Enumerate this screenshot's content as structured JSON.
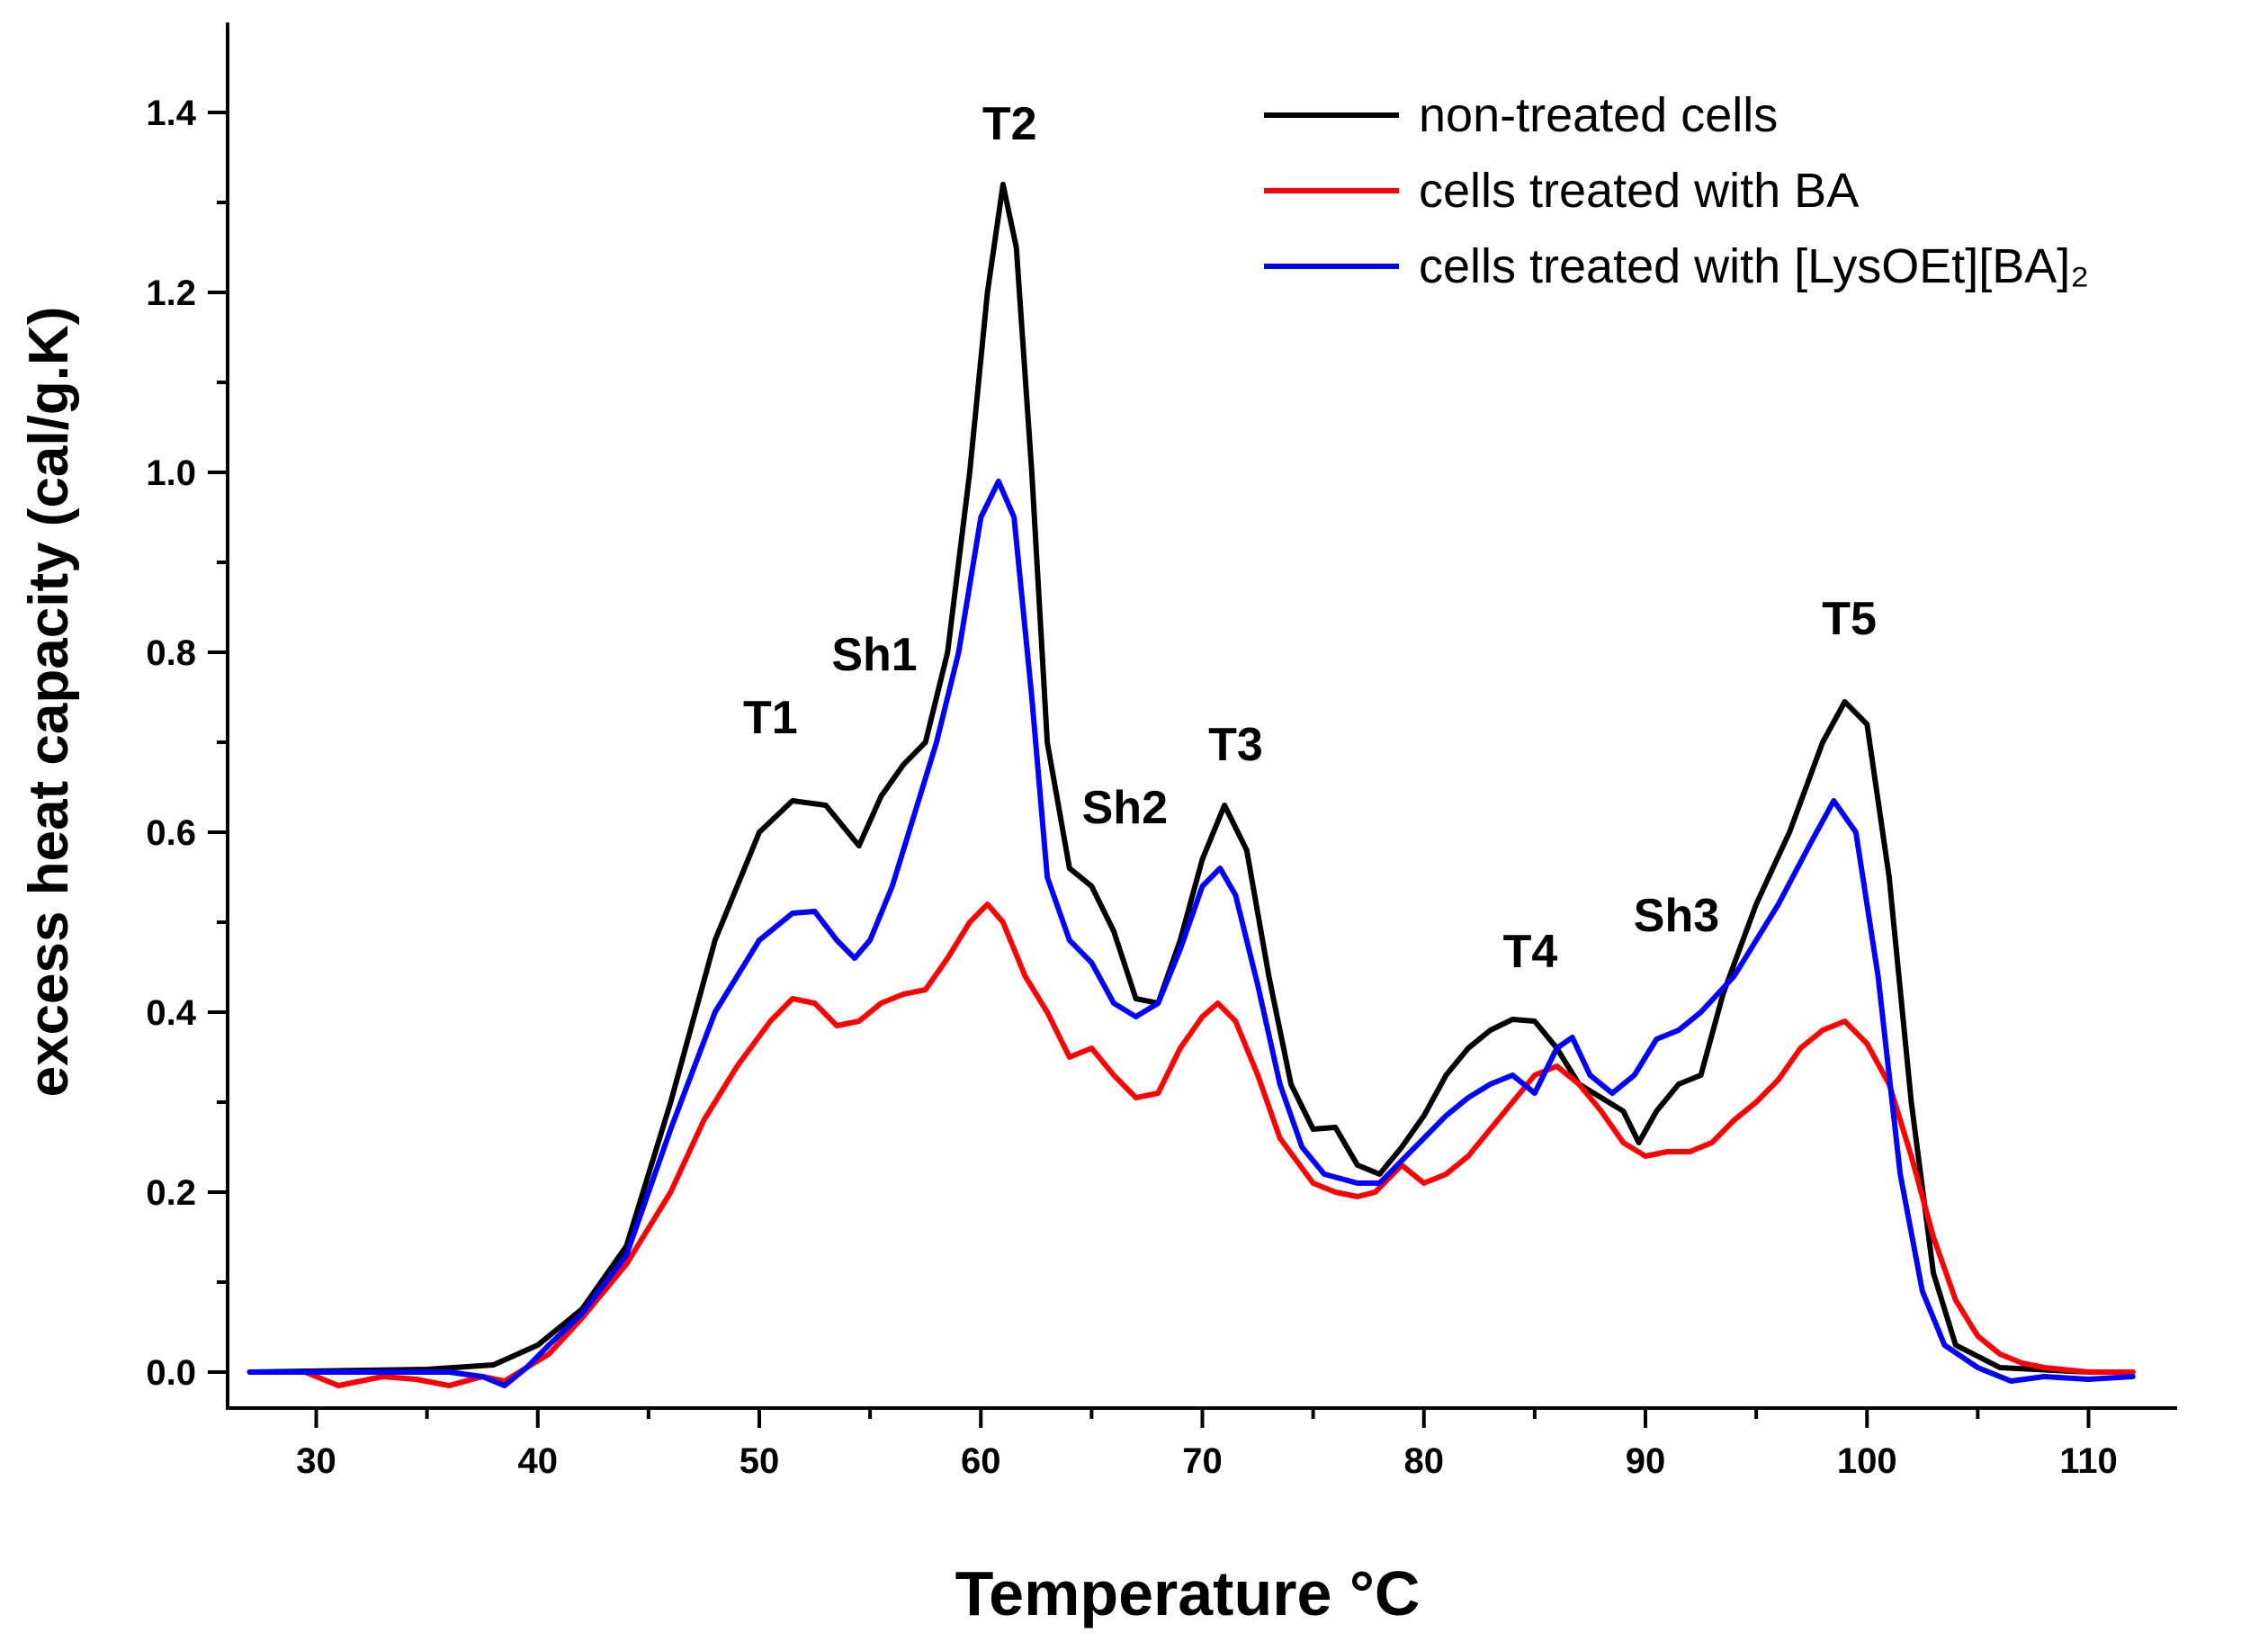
{
  "chart_data": {
    "type": "line",
    "title": "",
    "xlabel": "Temperature °C",
    "ylabel": "excess heat capacity (cal/g.K)",
    "xlim": [
      26,
      114
    ],
    "ylim": [
      -0.04,
      1.5
    ],
    "x_ticks": [
      30,
      40,
      50,
      60,
      70,
      80,
      90,
      100,
      110
    ],
    "x_tick_labels": [
      "30",
      "40",
      "50",
      "60",
      "70",
      "80",
      "90",
      "100",
      "110"
    ],
    "y_ticks": [
      0.0,
      0.2,
      0.4,
      0.6,
      0.8,
      1.0,
      1.2,
      1.4
    ],
    "y_tick_labels": [
      "0.0",
      "0.2",
      "0.4",
      "0.6",
      "0.8",
      "1.0",
      "1.2",
      "1.4"
    ],
    "grid": false,
    "legend_position": "top-right",
    "series": [
      {
        "name": "non-treated cells",
        "color": "#000000",
        "points": [
          [
            27,
            0
          ],
          [
            35,
            0.003
          ],
          [
            38,
            0.008
          ],
          [
            40,
            0.03
          ],
          [
            42,
            0.07
          ],
          [
            44,
            0.14
          ],
          [
            46,
            0.3
          ],
          [
            48,
            0.48
          ],
          [
            50,
            0.6
          ],
          [
            51.5,
            0.635
          ],
          [
            53,
            0.63
          ],
          [
            54.5,
            0.585
          ],
          [
            55.5,
            0.64
          ],
          [
            56.5,
            0.675
          ],
          [
            57.5,
            0.7
          ],
          [
            58.5,
            0.8
          ],
          [
            59.5,
            1.0
          ],
          [
            60.3,
            1.2
          ],
          [
            61,
            1.32
          ],
          [
            61.6,
            1.25
          ],
          [
            62.3,
            1.0
          ],
          [
            63,
            0.7
          ],
          [
            64,
            0.56
          ],
          [
            65,
            0.54
          ],
          [
            66,
            0.49
          ],
          [
            67,
            0.415
          ],
          [
            68,
            0.41
          ],
          [
            69,
            0.48
          ],
          [
            70,
            0.57
          ],
          [
            71,
            0.63
          ],
          [
            72,
            0.58
          ],
          [
            73,
            0.44
          ],
          [
            74,
            0.32
          ],
          [
            75,
            0.27
          ],
          [
            76,
            0.272
          ],
          [
            77,
            0.23
          ],
          [
            78,
            0.22
          ],
          [
            79,
            0.25
          ],
          [
            80,
            0.285
          ],
          [
            81,
            0.33
          ],
          [
            82,
            0.36
          ],
          [
            83,
            0.38
          ],
          [
            84,
            0.392
          ],
          [
            85,
            0.39
          ],
          [
            86,
            0.36
          ],
          [
            87,
            0.32
          ],
          [
            88,
            0.305
          ],
          [
            89,
            0.29
          ],
          [
            89.7,
            0.255
          ],
          [
            90.5,
            0.29
          ],
          [
            91.5,
            0.32
          ],
          [
            92.5,
            0.33
          ],
          [
            93.5,
            0.42
          ],
          [
            95,
            0.52
          ],
          [
            96.5,
            0.6
          ],
          [
            98,
            0.7
          ],
          [
            99,
            0.745
          ],
          [
            100,
            0.72
          ],
          [
            101,
            0.55
          ],
          [
            102,
            0.3
          ],
          [
            103,
            0.11
          ],
          [
            104,
            0.03
          ],
          [
            106,
            0.005
          ],
          [
            110,
            0
          ],
          [
            112,
            0
          ]
        ]
      },
      {
        "name": "cells treated with BA",
        "color": "#ff0000",
        "points": [
          [
            27,
            0
          ],
          [
            29.5,
            0
          ],
          [
            31,
            -0.015
          ],
          [
            33,
            -0.005
          ],
          [
            34.5,
            -0.008
          ],
          [
            36,
            -0.015
          ],
          [
            37.5,
            -0.005
          ],
          [
            38.5,
            -0.01
          ],
          [
            39.5,
            0.005
          ],
          [
            40.5,
            0.02
          ],
          [
            42,
            0.06
          ],
          [
            44,
            0.12
          ],
          [
            46,
            0.2
          ],
          [
            47.5,
            0.28
          ],
          [
            49,
            0.34
          ],
          [
            50.5,
            0.39
          ],
          [
            51.5,
            0.415
          ],
          [
            52.5,
            0.41
          ],
          [
            53.5,
            0.385
          ],
          [
            54.5,
            0.39
          ],
          [
            55.5,
            0.41
          ],
          [
            56.5,
            0.42
          ],
          [
            57.5,
            0.425
          ],
          [
            58.5,
            0.46
          ],
          [
            59.5,
            0.5
          ],
          [
            60.3,
            0.52
          ],
          [
            61,
            0.5
          ],
          [
            62,
            0.44
          ],
          [
            63,
            0.4
          ],
          [
            64,
            0.35
          ],
          [
            65,
            0.36
          ],
          [
            66,
            0.33
          ],
          [
            67,
            0.305
          ],
          [
            68,
            0.31
          ],
          [
            69,
            0.36
          ],
          [
            70,
            0.395
          ],
          [
            70.7,
            0.41
          ],
          [
            71.5,
            0.39
          ],
          [
            72.5,
            0.33
          ],
          [
            73.5,
            0.26
          ],
          [
            75,
            0.21
          ],
          [
            76,
            0.2
          ],
          [
            77,
            0.195
          ],
          [
            77.8,
            0.2
          ],
          [
            79,
            0.23
          ],
          [
            80,
            0.21
          ],
          [
            81,
            0.22
          ],
          [
            82,
            0.24
          ],
          [
            83,
            0.27
          ],
          [
            84,
            0.3
          ],
          [
            85,
            0.33
          ],
          [
            86,
            0.34
          ],
          [
            87,
            0.32
          ],
          [
            88,
            0.29
          ],
          [
            89,
            0.255
          ],
          [
            90,
            0.24
          ],
          [
            91,
            0.245
          ],
          [
            92,
            0.245
          ],
          [
            93,
            0.255
          ],
          [
            94,
            0.28
          ],
          [
            95,
            0.3
          ],
          [
            96,
            0.325
          ],
          [
            97,
            0.36
          ],
          [
            98,
            0.38
          ],
          [
            99,
            0.39
          ],
          [
            100,
            0.365
          ],
          [
            101,
            0.32
          ],
          [
            102,
            0.24
          ],
          [
            103,
            0.15
          ],
          [
            104,
            0.08
          ],
          [
            105,
            0.04
          ],
          [
            106,
            0.02
          ],
          [
            107,
            0.01
          ],
          [
            108,
            0.005
          ],
          [
            110,
            0
          ],
          [
            112,
            0
          ]
        ]
      },
      {
        "name": "cells treated with [LysOEt][BA]₂",
        "color": "#0000ff",
        "points": [
          [
            27,
            0
          ],
          [
            36,
            0
          ],
          [
            37.5,
            -0.005
          ],
          [
            38.5,
            -0.015
          ],
          [
            39.5,
            0.005
          ],
          [
            40.5,
            0.03
          ],
          [
            42,
            0.065
          ],
          [
            44,
            0.13
          ],
          [
            46,
            0.27
          ],
          [
            48,
            0.4
          ],
          [
            50,
            0.48
          ],
          [
            51.5,
            0.51
          ],
          [
            52.5,
            0.512
          ],
          [
            53.5,
            0.48
          ],
          [
            54.3,
            0.46
          ],
          [
            55,
            0.48
          ],
          [
            56,
            0.54
          ],
          [
            57,
            0.62
          ],
          [
            58,
            0.7
          ],
          [
            59,
            0.8
          ],
          [
            60,
            0.95
          ],
          [
            60.8,
            0.99
          ],
          [
            61.5,
            0.95
          ],
          [
            62.3,
            0.75
          ],
          [
            63,
            0.55
          ],
          [
            64,
            0.48
          ],
          [
            65,
            0.455
          ],
          [
            66,
            0.41
          ],
          [
            67,
            0.395
          ],
          [
            68,
            0.41
          ],
          [
            69,
            0.47
          ],
          [
            70,
            0.54
          ],
          [
            70.8,
            0.56
          ],
          [
            71.5,
            0.53
          ],
          [
            72.5,
            0.43
          ],
          [
            73.5,
            0.32
          ],
          [
            74.5,
            0.25
          ],
          [
            75.5,
            0.22
          ],
          [
            77,
            0.21
          ],
          [
            78,
            0.21
          ],
          [
            79,
            0.235
          ],
          [
            80,
            0.26
          ],
          [
            81,
            0.285
          ],
          [
            82,
            0.305
          ],
          [
            83,
            0.32
          ],
          [
            84,
            0.33
          ],
          [
            85,
            0.31
          ],
          [
            86,
            0.36
          ],
          [
            86.7,
            0.372
          ],
          [
            87.5,
            0.33
          ],
          [
            88.5,
            0.31
          ],
          [
            89.5,
            0.33
          ],
          [
            90.5,
            0.37
          ],
          [
            91.5,
            0.38
          ],
          [
            92.5,
            0.4
          ],
          [
            94,
            0.44
          ],
          [
            96,
            0.52
          ],
          [
            97.5,
            0.59
          ],
          [
            98.5,
            0.635
          ],
          [
            99.5,
            0.6
          ],
          [
            100.5,
            0.44
          ],
          [
            101.5,
            0.22
          ],
          [
            102.5,
            0.09
          ],
          [
            103.5,
            0.03
          ],
          [
            105,
            0.005
          ],
          [
            106.5,
            -0.01
          ],
          [
            108,
            -0.005
          ],
          [
            110,
            -0.008
          ],
          [
            112,
            -0.005
          ]
        ]
      }
    ],
    "annotations": [
      {
        "text": "T1",
        "x": 50.5,
        "y": 0.71
      },
      {
        "text": "Sh1",
        "x": 55.2,
        "y": 0.78
      },
      {
        "text": "T2",
        "x": 61.3,
        "y": 1.37
      },
      {
        "text": "Sh2",
        "x": 66.5,
        "y": 0.61
      },
      {
        "text": "T3",
        "x": 71.5,
        "y": 0.68
      },
      {
        "text": "T4",
        "x": 84.8,
        "y": 0.45
      },
      {
        "text": "Sh3",
        "x": 91.4,
        "y": 0.49
      },
      {
        "text": "T5",
        "x": 99.2,
        "y": 0.82
      }
    ]
  }
}
